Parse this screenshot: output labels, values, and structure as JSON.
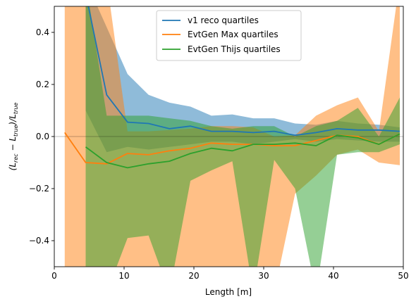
{
  "chart_data": {
    "type": "line",
    "title": "",
    "xlabel": "Length [m]",
    "ylabel_parts": [
      "(L",
      "rec",
      " − L",
      "true",
      ")/L",
      "true"
    ],
    "xlim": [
      0,
      50
    ],
    "ylim": [
      -0.5,
      0.5
    ],
    "xticks": [
      0,
      10,
      20,
      30,
      40,
      50
    ],
    "xtick_labels": [
      "0",
      "10",
      "20",
      "30",
      "40",
      "50"
    ],
    "yticks": [
      -0.4,
      -0.2,
      0.0,
      0.2,
      0.4
    ],
    "ytick_labels": [
      "−0.4",
      "−0.2",
      "0.0",
      "0.2",
      "0.4"
    ],
    "hline": 0,
    "legend_position": "top-center",
    "series": [
      {
        "name": "v1 reco quartiles",
        "color": "#1f77b4",
        "x": [
          4.5,
          7.5,
          10.5,
          13.5,
          16.5,
          19.5,
          22.5,
          25.5,
          28.5,
          31.5,
          34.5,
          37.5,
          40.5,
          43.5,
          46.5,
          49.5
        ],
        "median": [
          0.55,
          0.16,
          0.055,
          0.05,
          0.03,
          0.04,
          0.02,
          0.02,
          0.015,
          0.02,
          0.005,
          0.015,
          0.03,
          0.025,
          0.025,
          0.02
        ],
        "upper": [
          0.6,
          0.42,
          0.24,
          0.16,
          0.13,
          0.115,
          0.08,
          0.085,
          0.07,
          0.07,
          0.05,
          0.045,
          0.06,
          0.05,
          0.045,
          0.035
        ],
        "lower": [
          0.1,
          -0.06,
          -0.04,
          -0.05,
          -0.04,
          -0.03,
          -0.02,
          -0.02,
          -0.03,
          -0.02,
          -0.01,
          -0.02,
          -0.01,
          -0.015,
          -0.02,
          -0.02
        ]
      },
      {
        "name": "EvtGen Max quartiles",
        "color": "#ff7f0e",
        "x": [
          1.5,
          4.5,
          7.5,
          10.5,
          13.5,
          16.5,
          19.5,
          22.5,
          25.5,
          28.5,
          31.5,
          34.5,
          37.5,
          40.5,
          43.5,
          46.5,
          49.5
        ],
        "median": [
          0.015,
          -0.1,
          -0.105,
          -0.065,
          -0.07,
          -0.055,
          -0.045,
          -0.025,
          -0.03,
          -0.03,
          -0.035,
          -0.035,
          -0.015,
          0.005,
          0.0,
          -0.03,
          0.01
        ],
        "upper": [
          0.6,
          0.6,
          0.6,
          0.02,
          0.02,
          0.025,
          0.03,
          0.04,
          0.04,
          0.035,
          0.0,
          0.005,
          0.08,
          0.12,
          0.15,
          0.02,
          0.6
        ],
        "lower": [
          -0.6,
          -0.6,
          -0.6,
          -0.6,
          -0.6,
          -0.6,
          -0.6,
          -0.6,
          -0.6,
          -0.6,
          -0.6,
          -0.22,
          -0.15,
          -0.07,
          -0.05,
          -0.1,
          -0.11
        ]
      },
      {
        "name": "EvtGen Thijs quartiles",
        "color": "#2ca02c",
        "x": [
          4.5,
          7.5,
          10.5,
          13.5,
          16.5,
          19.5,
          22.5,
          25.5,
          28.5,
          31.5,
          34.5,
          37.5,
          40.5,
          43.5,
          46.5,
          49.5
        ],
        "median": [
          -0.04,
          -0.1,
          -0.12,
          -0.105,
          -0.095,
          -0.065,
          -0.045,
          -0.055,
          -0.03,
          -0.03,
          -0.025,
          -0.035,
          0.005,
          -0.005,
          -0.03,
          0.01
        ],
        "upper": [
          0.6,
          0.08,
          0.08,
          0.08,
          0.07,
          0.06,
          0.04,
          0.03,
          0.04,
          0.04,
          0.0,
          0.04,
          0.06,
          0.11,
          0.0,
          0.15
        ],
        "lower": [
          -0.6,
          -0.6,
          -0.39,
          -0.38,
          -0.6,
          -0.17,
          -0.13,
          -0.095,
          -0.6,
          -0.09,
          -0.2,
          -0.6,
          -0.07,
          -0.06,
          -0.06,
          -0.03
        ]
      }
    ]
  }
}
